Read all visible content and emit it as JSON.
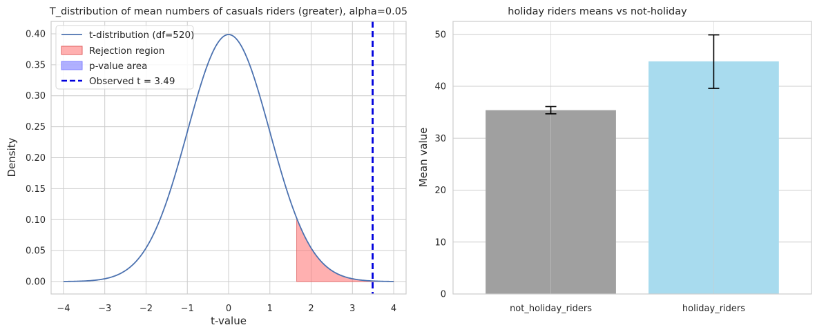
{
  "chart_data": [
    {
      "type": "line",
      "title": "T_distribution of mean numbers of casuals riders (greater), alpha=0.05",
      "xlabel": "t-value",
      "ylabel": "Density",
      "xlim": [
        -4.3,
        4.3
      ],
      "ylim": [
        -0.02,
        0.42
      ],
      "x_ticks": [
        -4,
        -3,
        -2,
        -1,
        0,
        1,
        2,
        3,
        4
      ],
      "x_tick_labels": [
        "−4",
        "−3",
        "−2",
        "−1",
        "0",
        "1",
        "2",
        "3",
        "4"
      ],
      "y_ticks": [
        0.0,
        0.05,
        0.1,
        0.15,
        0.2,
        0.25,
        0.3,
        0.35,
        0.4
      ],
      "y_tick_labels": [
        "0.00",
        "0.05",
        "0.10",
        "0.15",
        "0.20",
        "0.25",
        "0.30",
        "0.35",
        "0.40"
      ],
      "grid": true,
      "legend_position": "top-left",
      "df": 520,
      "series": [
        {
          "name": "t-distribution (df=520)",
          "kind": "line",
          "color": "#4c72b0",
          "x": [
            -4.0,
            -3.5,
            -3.0,
            -2.5,
            -2.0,
            -1.5,
            -1.0,
            -0.5,
            0.0,
            0.5,
            1.0,
            1.5,
            2.0,
            2.5,
            3.0,
            3.5,
            4.0
          ],
          "y": [
            0.0001,
            0.0009,
            0.0044,
            0.0175,
            0.054,
            0.1295,
            0.2419,
            0.3519,
            0.3989,
            0.3519,
            0.2419,
            0.1295,
            0.054,
            0.0175,
            0.0044,
            0.0009,
            0.0001
          ]
        },
        {
          "name": "Rejection region",
          "kind": "area",
          "color": "#ff6f6f",
          "x_start": 1.65,
          "x_end": 4.0
        },
        {
          "name": "p-value area",
          "kind": "area",
          "color": "#6f6fff",
          "x_start": 3.49,
          "x_end": 4.0
        },
        {
          "name": "Observed t = 3.49",
          "kind": "vline",
          "color": "#0000dd",
          "x": 3.49
        }
      ]
    },
    {
      "type": "bar",
      "title": "holiday riders means vs not-holiday",
      "xlabel": "",
      "ylabel": "Mean value",
      "ylim": [
        0,
        52.5
      ],
      "y_ticks": [
        0,
        10,
        20,
        30,
        40,
        50
      ],
      "y_tick_labels": [
        "0",
        "10",
        "20",
        "30",
        "40",
        "50"
      ],
      "grid": true,
      "categories": [
        "not_holiday_riders",
        "holiday_riders"
      ],
      "values": [
        35.4,
        44.8
      ],
      "error_low": [
        34.7,
        39.6
      ],
      "error_high": [
        36.1,
        49.9
      ],
      "colors": [
        "#a0a0a0",
        "#a8dbee"
      ]
    }
  ]
}
